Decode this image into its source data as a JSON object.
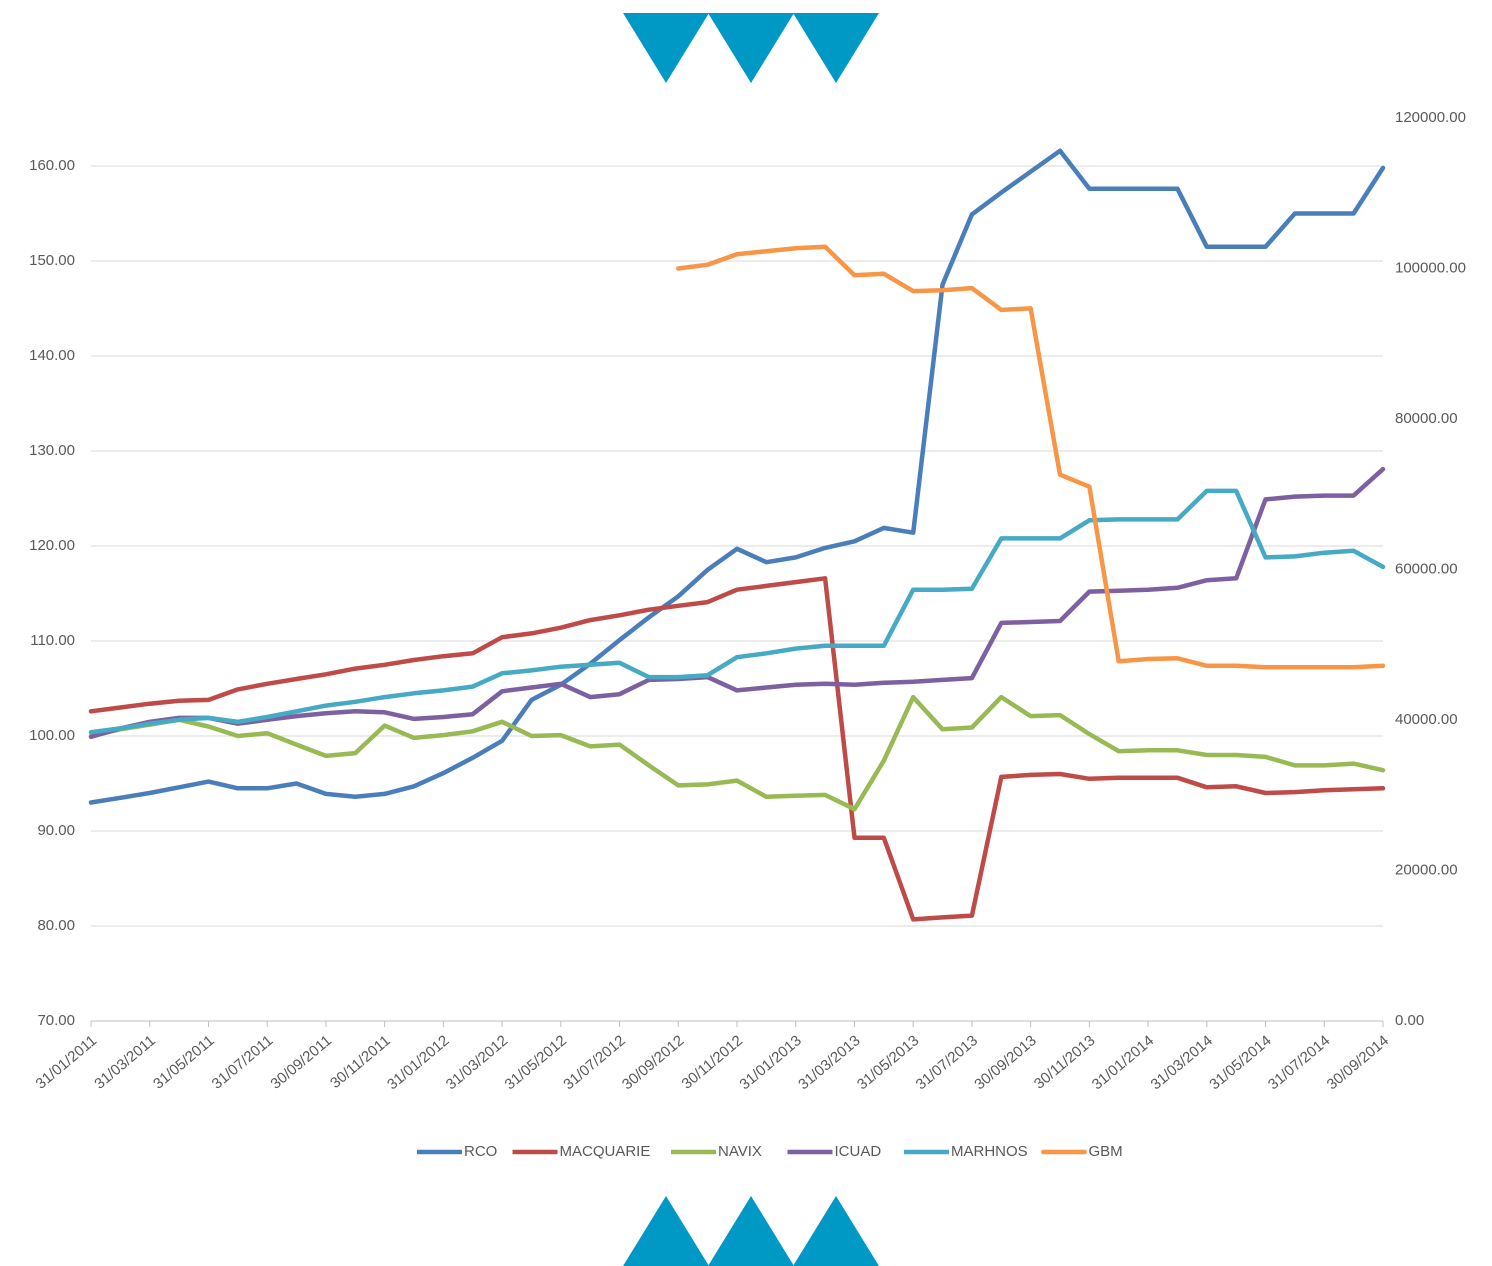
{
  "chart_data": {
    "type": "line",
    "categories": [
      "31/01/2011",
      null,
      "31/03/2011",
      null,
      "31/05/2011",
      null,
      "31/07/2011",
      null,
      "30/09/2011",
      null,
      "30/11/2011",
      null,
      "31/01/2012",
      null,
      "31/03/2012",
      null,
      "31/05/2012",
      null,
      "31/07/2012",
      null,
      "30/09/2012",
      null,
      "30/11/2012",
      null,
      "31/01/2013",
      null,
      "31/03/2013",
      null,
      "31/05/2013",
      null,
      "31/07/2013",
      null,
      "30/09/2013",
      null,
      "30/11/2013",
      null,
      "31/01/2014",
      null,
      "31/03/2014",
      null,
      "31/05/2014",
      null,
      "31/07/2014",
      null,
      "30/09/2014"
    ],
    "series": [
      {
        "name": "RCO",
        "color": "#4a7ebb",
        "values": [
          93.0,
          93.5,
          94.0,
          94.6,
          95.2,
          94.5,
          94.5,
          95.0,
          93.9,
          93.6,
          93.9,
          94.7,
          96.1,
          97.7,
          99.5,
          103.8,
          105.4,
          107.6,
          110.1,
          112.5,
          114.7,
          117.5,
          119.7,
          118.3,
          118.8,
          119.8,
          120.5,
          121.9,
          121.4,
          147.5,
          154.9,
          157.2,
          159.4,
          161.6,
          157.6,
          157.6,
          157.6,
          157.6,
          151.5,
          151.5,
          151.5,
          155.0,
          155.0,
          155.0,
          159.8
        ]
      },
      {
        "name": "MACQUARIE",
        "color": "#be4b48",
        "values": [
          102.6,
          103.0,
          103.4,
          103.7,
          103.8,
          104.9,
          105.5,
          106.0,
          106.5,
          107.1,
          107.5,
          108.0,
          108.4,
          108.7,
          110.4,
          110.8,
          111.4,
          112.2,
          112.7,
          113.3,
          113.7,
          114.1,
          115.4,
          115.8,
          116.2,
          116.6,
          89.3,
          89.3,
          80.7,
          80.9,
          81.1,
          95.7,
          95.9,
          96.0,
          95.5,
          95.6,
          95.6,
          95.6,
          94.6,
          94.7,
          94.0,
          94.1,
          94.3,
          94.4,
          94.5
        ]
      },
      {
        "name": "NAVIX",
        "color": "#98b954",
        "values": [
          100.0,
          100.7,
          101.2,
          101.7,
          101.0,
          100.0,
          100.3,
          99.1,
          97.9,
          98.2,
          101.1,
          99.8,
          100.1,
          100.5,
          101.5,
          100.0,
          100.1,
          98.9,
          99.1,
          96.9,
          94.8,
          94.9,
          95.3,
          93.6,
          93.7,
          93.8,
          92.3,
          97.4,
          104.1,
          100.7,
          100.9,
          104.1,
          102.1,
          102.2,
          100.2,
          98.4,
          98.5,
          98.5,
          98.0,
          98.0,
          97.8,
          96.9,
          96.9,
          97.1,
          96.4
        ]
      },
      {
        "name": "ICUAD",
        "color": "#7d60a0",
        "values": [
          99.9,
          100.8,
          101.5,
          101.9,
          101.9,
          101.3,
          101.7,
          102.1,
          102.4,
          102.6,
          102.5,
          101.8,
          102.0,
          102.3,
          104.7,
          105.1,
          105.5,
          104.1,
          104.4,
          105.9,
          106.0,
          106.2,
          104.8,
          105.1,
          105.4,
          105.5,
          105.4,
          105.6,
          105.7,
          105.9,
          106.1,
          111.9,
          112.0,
          112.1,
          115.2,
          115.3,
          115.4,
          115.6,
          116.4,
          116.6,
          124.9,
          125.2,
          125.3,
          125.3,
          128.1
        ]
      },
      {
        "name": "MARHNOS",
        "color": "#46aac5",
        "values": [
          100.4,
          100.8,
          101.3,
          101.7,
          101.9,
          101.5,
          102.0,
          102.6,
          103.2,
          103.6,
          104.1,
          104.5,
          104.8,
          105.2,
          106.6,
          106.9,
          107.3,
          107.5,
          107.7,
          106.2,
          106.2,
          106.4,
          108.3,
          108.7,
          109.2,
          109.5,
          109.5,
          109.5,
          115.4,
          115.4,
          115.5,
          120.8,
          120.8,
          120.8,
          122.7,
          122.8,
          122.8,
          122.8,
          125.8,
          125.8,
          118.8,
          118.9,
          119.3,
          119.5,
          117.8
        ]
      },
      {
        "name": "GBM",
        "color": "#f79646",
        "axis": "y2",
        "values": [
          null,
          null,
          null,
          null,
          null,
          null,
          null,
          null,
          null,
          null,
          null,
          null,
          null,
          null,
          null,
          null,
          null,
          null,
          null,
          null,
          100000,
          100500,
          101900,
          102300,
          102700,
          102900,
          99100,
          99300,
          97000,
          97100,
          97400,
          94500,
          94700,
          72600,
          71000,
          47800,
          48100,
          48200,
          47200,
          47200,
          47000,
          47000,
          47000,
          47000,
          47200
        ]
      }
    ],
    "ylim": [
      70,
      160
    ],
    "yticks": [
      {
        "value": 70,
        "label": "70.00"
      },
      {
        "value": 80,
        "label": "80.00"
      },
      {
        "value": 90,
        "label": "90.00"
      },
      {
        "value": 100,
        "label": "100.00"
      },
      {
        "value": 110,
        "label": "110.00"
      },
      {
        "value": 120,
        "label": "120.00"
      },
      {
        "value": 130,
        "label": "130.00"
      },
      {
        "value": 140,
        "label": "140.00"
      },
      {
        "value": 150,
        "label": "150.00"
      },
      {
        "value": 160,
        "label": "160.00"
      }
    ],
    "y2lim": [
      0,
      120000
    ],
    "y2ticks": [
      {
        "value": 0,
        "label": "0.00"
      },
      {
        "value": 20000,
        "label": "20000.00"
      },
      {
        "value": 40000,
        "label": "40000.00"
      },
      {
        "value": 60000,
        "label": "60000.00"
      },
      {
        "value": 80000,
        "label": "80000.00"
      },
      {
        "value": 100000,
        "label": "100000.00"
      },
      {
        "value": 120000,
        "label": "120000.00"
      }
    ],
    "grid": true,
    "legend": "bottom"
  }
}
